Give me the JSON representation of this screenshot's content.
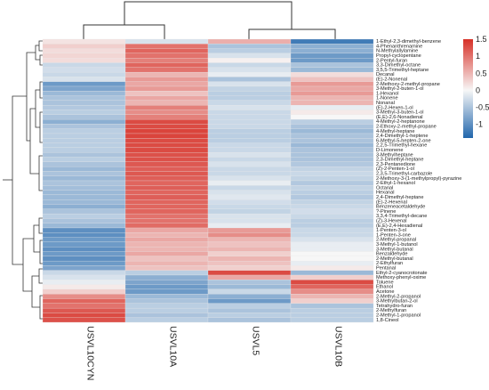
{
  "chart_data": {
    "type": "heatmap",
    "columns": [
      "USVL10CYN",
      "USVL10A",
      "USVL5",
      "USVL10B"
    ],
    "rows": [
      "1-Ethyl-2,3-dimethyl-benzene",
      "4-Phenanthrenamine",
      "N-Methylallylamine",
      "Propyl-cyclopentane",
      "2-Pentyl-furan",
      "3,3-Dimethyl-octane",
      "3,5,5-Trimethyl-heptane",
      "Decanal",
      "(E)-2-Nonenal",
      "2-Methoxy-2-methyl-propane",
      "3-Methyl-2-buten-1-ol",
      "1-Hexanol",
      "1-Nonene",
      "Nonanal",
      "(E)-2-Hexen-1-ol",
      "3-Methyl-3-buten-1-ol",
      "(E,E)-2,6-Nonadienal",
      "4-Methyl-2-heptanone",
      "2-Ethoxy-2-methyl-propane",
      "4-Methyl-heptane",
      "2,4-Dimethyl-1-heptene",
      "6-Methyl-5-hepten-2-one",
      "2,2,5-Trimethyl-hexane",
      "D-Limonene",
      "3-Methylheptane",
      "2,3-Dimethyl-heptane",
      "2,3-Pentanedione",
      "(Z)-2-Penten-1-ol",
      "2,3,5-Trimethyl-carbazole",
      "2-Methoxy-3-(1-methylpropyl)-pyrazine",
      "2-Ethyl-1-hexanol",
      "Octanal",
      "Hexanal",
      "2,4-Dimethyl-heptane",
      "(E)-2-Hexenal",
      "Benzeneacetaldehyde",
      "?-Pinene",
      "3,3,4-Trimethyl-decane",
      "(Z)-3-Hexenal",
      "(E,E)-2,4-Hexadienal",
      "1-Penten-3-ol",
      "1-Penten-3-one",
      "2-Methyl-propanal",
      "3-Methyl-1-butanol",
      "3-Methyl-butanal",
      "Benzaldehyde",
      "2-Methyl-butanal",
      "2-Ethylfuran",
      "Pentanal",
      "Ethyl-2-cyanocrotonate",
      "Methoxy-phenyl-oxime",
      "Toluene",
      "Ethanol",
      "Acetone",
      "2-Methyl-2-propanol",
      "3-Methylbutan-2-ol",
      "Tetrahydro-furan",
      "2-Methylfuran",
      "2-Methyl-1-propanol",
      "1,8-Cineol"
    ],
    "values": [
      [
        0.15,
        -0.2,
        0.55,
        -1.2
      ],
      [
        0.3,
        1.0,
        -0.5,
        -0.7
      ],
      [
        0.2,
        1.1,
        -0.4,
        -0.7
      ],
      [
        0.25,
        1.0,
        -0.2,
        -0.9
      ],
      [
        0.2,
        0.9,
        0.05,
        -0.9
      ],
      [
        -0.3,
        1.1,
        -0.3,
        -0.5
      ],
      [
        -0.25,
        1.0,
        -0.2,
        -0.6
      ],
      [
        -0.3,
        0.5,
        -0.1,
        0.2
      ],
      [
        -0.2,
        0.7,
        -0.5,
        0.4
      ],
      [
        -0.9,
        0.6,
        -0.2,
        0.7
      ],
      [
        -0.8,
        0.7,
        -0.35,
        0.6
      ],
      [
        -0.6,
        0.4,
        -0.4,
        0.7
      ],
      [
        -0.5,
        0.6,
        -0.4,
        0.5
      ],
      [
        -0.5,
        0.5,
        -0.3,
        0.5
      ],
      [
        -0.45,
        0.9,
        -0.2,
        -0.1
      ],
      [
        -0.4,
        0.8,
        -0.3,
        0.1
      ],
      [
        -0.5,
        0.9,
        -0.3,
        0.0
      ],
      [
        -0.7,
        1.3,
        -0.3,
        -0.4
      ],
      [
        -0.5,
        1.3,
        -0.3,
        -0.5
      ],
      [
        -0.4,
        1.35,
        -0.4,
        -0.6
      ],
      [
        -0.4,
        1.35,
        -0.4,
        -0.5
      ],
      [
        -0.4,
        1.3,
        -0.4,
        -0.5
      ],
      [
        -0.4,
        1.3,
        -0.3,
        -0.6
      ],
      [
        -0.4,
        1.3,
        -0.3,
        -0.5
      ],
      [
        -0.5,
        1.25,
        -0.2,
        -0.5
      ],
      [
        -0.4,
        1.25,
        -0.3,
        -0.5
      ],
      [
        -0.5,
        1.2,
        -0.2,
        -0.45
      ],
      [
        -0.6,
        1.15,
        -0.3,
        -0.35
      ],
      [
        -0.5,
        1.2,
        -0.3,
        -0.3
      ],
      [
        -0.6,
        1.15,
        -0.2,
        -0.35
      ],
      [
        -0.5,
        1.1,
        -0.1,
        -0.45
      ],
      [
        -0.55,
        1.15,
        -0.3,
        -0.35
      ],
      [
        -0.6,
        1.1,
        -0.2,
        -0.4
      ],
      [
        -0.6,
        1.15,
        -0.15,
        -0.45
      ],
      [
        -0.6,
        1.1,
        -0.25,
        -0.35
      ],
      [
        -0.7,
        1.1,
        -0.3,
        -0.3
      ],
      [
        -0.5,
        1.1,
        -0.35,
        -0.25
      ],
      [
        -0.4,
        1.0,
        -0.2,
        -0.3
      ],
      [
        -0.5,
        1.0,
        -0.2,
        -0.4
      ],
      [
        -0.6,
        1.05,
        -0.1,
        -0.4
      ],
      [
        -1.0,
        0.6,
        0.7,
        -0.3
      ],
      [
        -1.0,
        0.5,
        0.8,
        -0.3
      ],
      [
        -0.9,
        0.6,
        0.5,
        -0.2
      ],
      [
        -0.9,
        0.5,
        0.4,
        -0.1
      ],
      [
        -1.0,
        0.5,
        0.5,
        -0.1
      ],
      [
        -0.9,
        0.6,
        0.3,
        0.0
      ],
      [
        -1.0,
        0.4,
        0.5,
        0.0
      ],
      [
        -0.9,
        0.5,
        0.4,
        -0.1
      ],
      [
        -0.8,
        0.4,
        0.3,
        0.1
      ],
      [
        -0.3,
        -0.4,
        1.3,
        -0.6
      ],
      [
        -0.2,
        -0.7,
        0.6,
        0.3
      ],
      [
        -0.1,
        -0.8,
        -0.5,
        1.3
      ],
      [
        0.1,
        -0.9,
        -0.6,
        1.1
      ],
      [
        0.3,
        -0.9,
        -0.3,
        0.8
      ],
      [
        0.8,
        -0.6,
        -0.7,
        0.5
      ],
      [
        1.1,
        -0.5,
        -0.9,
        0.3
      ],
      [
        1.0,
        -0.4,
        -0.4,
        -0.5
      ],
      [
        1.2,
        -0.4,
        -0.5,
        -0.4
      ],
      [
        1.3,
        -0.5,
        -0.4,
        -0.4
      ],
      [
        1.25,
        -0.4,
        -0.5,
        -0.4
      ]
    ],
    "colorbar": {
      "ticks": [
        "1.5",
        "1",
        "0.5",
        "0",
        "-0.5",
        "-1"
      ],
      "tick_values": [
        1.5,
        1,
        0.5,
        0,
        -0.5,
        -1
      ],
      "range": [
        -1.4,
        1.5
      ],
      "colors": {
        "low": "#2166ac",
        "mid": "#f7f7f7",
        "high": "#d73027"
      }
    },
    "column_dendrogram": true,
    "row_dendrogram": true
  }
}
